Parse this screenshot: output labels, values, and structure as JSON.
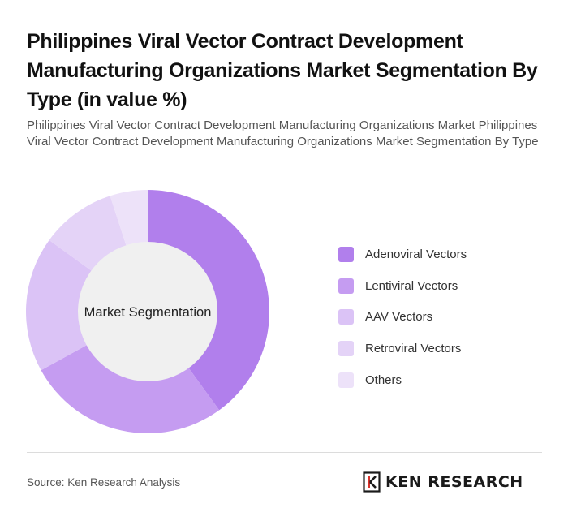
{
  "title": "Philippines Viral Vector Contract Development Manufacturing Organizations Market Segmentation By Type (in value %)",
  "subtitle": "Philippines Viral Vector Contract Development Manufacturing Organizations Market Philippines Viral Vector Contract Development Manufacturing Organizations Market Segmentation By Type",
  "chart_data": {
    "type": "pie",
    "variant": "donut",
    "center_label": "Market Segmentation",
    "categories": [
      "Adenoviral Vectors",
      "Lentiviral Vectors",
      "AAV Vectors",
      "Retroviral Vectors",
      "Others"
    ],
    "values": [
      40,
      27,
      18,
      10,
      5
    ],
    "colors": [
      "#b17fec",
      "#c59cf1",
      "#dbc3f6",
      "#e4d3f7",
      "#ede2f9"
    ],
    "legend_position": "right"
  },
  "footer": {
    "source": "Source: Ken Research Analysis",
    "logo_text": "KEN RESEARCH"
  }
}
